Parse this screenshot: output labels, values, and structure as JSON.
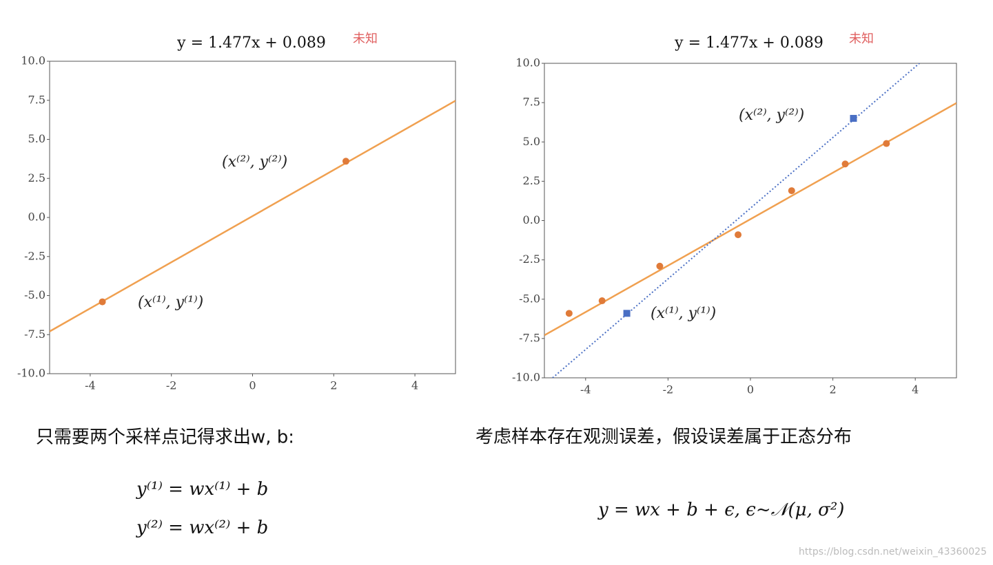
{
  "chart_data": [
    {
      "type": "line",
      "title": "y = 1.477x + 0.089",
      "title_note": "未知",
      "xlim": [
        -5,
        5
      ],
      "ylim": [
        -10,
        10
      ],
      "xticks": [
        -4,
        -2,
        0,
        2,
        4
      ],
      "yticks": [
        {
          "value": 10,
          "label": "10.0"
        },
        {
          "value": 7.5,
          "label": "7.5"
        },
        {
          "value": 5,
          "label": "5.0"
        },
        {
          "value": 2.5,
          "label": "2.5"
        },
        {
          "value": 0,
          "label": "0.0"
        },
        {
          "value": -2.5,
          "label": "-2.5"
        },
        {
          "value": -5,
          "label": "-5.0"
        },
        {
          "value": -7.5,
          "label": "-7.5"
        },
        {
          "value": -10,
          "label": "-10.0"
        }
      ],
      "series": [
        {
          "kind": "line",
          "color": "#f0a050",
          "x": [
            -5,
            5
          ],
          "values": [
            -7.296,
            7.474
          ]
        },
        {
          "kind": "scatter",
          "marker": "circle",
          "color": "#e07b39",
          "x": [
            -3.7,
            2.3
          ],
          "values": [
            -5.4,
            3.6
          ]
        }
      ],
      "annotations": [
        "(x⁽²⁾, y⁽²⁾)",
        "(x⁽¹⁾, y⁽¹⁾)"
      ]
    },
    {
      "type": "line",
      "title": "y = 1.477x + 0.089",
      "title_note": "未知",
      "xlim": [
        -5,
        5
      ],
      "ylim": [
        -10,
        10
      ],
      "xticks": [
        -4,
        -2,
        0,
        2,
        4
      ],
      "yticks": [
        {
          "value": 10,
          "label": "10.0"
        },
        {
          "value": 7.5,
          "label": "7.5"
        },
        {
          "value": 5,
          "label": "5.0"
        },
        {
          "value": 2.5,
          "label": "2.5"
        },
        {
          "value": 0,
          "label": "0.0"
        },
        {
          "value": -2.5,
          "label": "-2.5"
        },
        {
          "value": -5,
          "label": "-5.0"
        },
        {
          "value": -7.5,
          "label": "-7.5"
        },
        {
          "value": -10,
          "label": "-10.0"
        }
      ],
      "series": [
        {
          "kind": "line",
          "color": "#f0a050",
          "x": [
            -5,
            5
          ],
          "values": [
            -7.296,
            7.474
          ]
        },
        {
          "kind": "line",
          "style": "dotted",
          "color": "#4a6fc4",
          "x": [
            -4.8,
            4.1
          ],
          "values": [
            -10,
            10
          ]
        },
        {
          "kind": "scatter",
          "marker": "circle",
          "color": "#e07b39",
          "x": [
            -4.4,
            -3.6,
            -2.2,
            -0.3,
            1.0,
            2.3,
            3.3
          ],
          "values": [
            -5.9,
            -5.1,
            -2.9,
            -0.9,
            1.9,
            3.6,
            4.9
          ]
        },
        {
          "kind": "scatter",
          "marker": "square",
          "color": "#4a6fc4",
          "x": [
            -3.0,
            2.5
          ],
          "values": [
            -5.9,
            6.5
          ]
        }
      ],
      "annotations": [
        "(x⁽²⁾, y⁽²⁾)",
        "(x⁽¹⁾, y⁽¹⁾)"
      ]
    }
  ],
  "left_text": {
    "heading": "只需要两个采样点记得求出w, b:",
    "equations": [
      "y⁽¹⁾ = wx⁽¹⁾ + b",
      "y⁽²⁾ = wx⁽²⁾ + b"
    ]
  },
  "right_text": {
    "heading": "考虑样本存在观测误差，假设误差属于正态分布",
    "equation": "y = wx + b + ϵ, ϵ~𝒩(μ, σ²)"
  },
  "watermark": "https://blog.csdn.net/weixin_43360025"
}
